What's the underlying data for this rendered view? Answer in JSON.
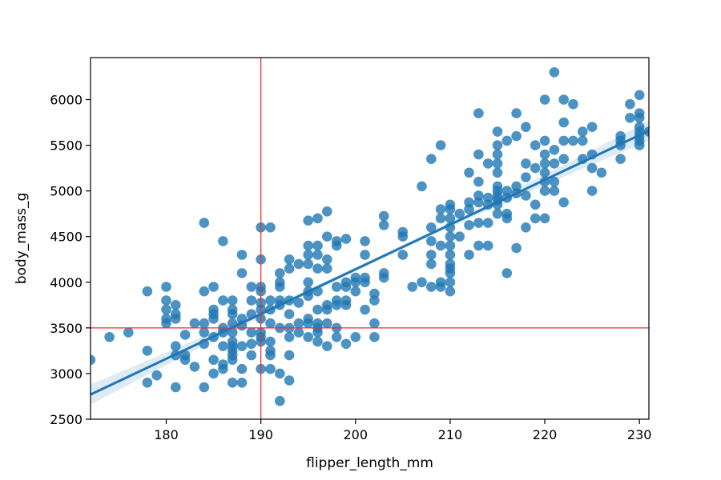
{
  "chart_data": {
    "type": "scatter",
    "title": "",
    "xlabel": "flipper_length_mm",
    "ylabel": "body_mass_g",
    "xlim": [
      172,
      231
    ],
    "ylim": [
      2500,
      6460
    ],
    "x_ticks": [
      180,
      190,
      200,
      210,
      220,
      230
    ],
    "y_ticks": [
      2500,
      3000,
      3500,
      4000,
      4500,
      5000,
      5500,
      6000
    ],
    "grid": false,
    "legend": "none",
    "colors": {
      "points": "#1f77b4",
      "regression": "#1f77b4",
      "ci_band": "#1f77b4",
      "reference_lines": "#e8302a"
    },
    "regression": {
      "x": [
        172,
        231
      ],
      "y": [
        2770,
        5660
      ]
    },
    "reference_lines": {
      "vertical_x": 190,
      "horizontal_y": 3500
    },
    "points": [
      [
        172,
        3150
      ],
      [
        174,
        3400
      ],
      [
        176,
        3450
      ],
      [
        178,
        3900
      ],
      [
        178,
        3250
      ],
      [
        178,
        2900
      ],
      [
        179,
        2980
      ],
      [
        180,
        3950
      ],
      [
        180,
        3800
      ],
      [
        180,
        3700
      ],
      [
        180,
        3600
      ],
      [
        180,
        3550
      ],
      [
        181,
        3750
      ],
      [
        181,
        3650
      ],
      [
        181,
        3600
      ],
      [
        181,
        3300
      ],
      [
        181,
        3200
      ],
      [
        181,
        2850
      ],
      [
        182,
        3425
      ],
      [
        182,
        3200
      ],
      [
        182,
        3150
      ],
      [
        183,
        3550
      ],
      [
        183,
        3075
      ],
      [
        184,
        4650
      ],
      [
        184,
        3900
      ],
      [
        184,
        3550
      ],
      [
        184,
        3450
      ],
      [
        184,
        3325
      ],
      [
        184,
        2850
      ],
      [
        185,
        3950
      ],
      [
        185,
        3700
      ],
      [
        185,
        3650
      ],
      [
        185,
        3600
      ],
      [
        185,
        3400
      ],
      [
        185,
        3150
      ],
      [
        185,
        3000
      ],
      [
        186,
        4450
      ],
      [
        186,
        3800
      ],
      [
        186,
        3500
      ],
      [
        186,
        3450
      ],
      [
        186,
        3300
      ],
      [
        186,
        3100
      ],
      [
        186,
        3050
      ],
      [
        187,
        3800
      ],
      [
        187,
        3700
      ],
      [
        187,
        3650
      ],
      [
        187,
        3550
      ],
      [
        187,
        3450
      ],
      [
        187,
        3350
      ],
      [
        187,
        3300
      ],
      [
        187,
        3250
      ],
      [
        187,
        3200
      ],
      [
        187,
        3150
      ],
      [
        187,
        2900
      ],
      [
        188,
        4300
      ],
      [
        188,
        4100
      ],
      [
        188,
        3600
      ],
      [
        188,
        3525
      ],
      [
        188,
        3300
      ],
      [
        188,
        3050
      ],
      [
        188,
        2900
      ],
      [
        189,
        3950
      ],
      [
        189,
        3800
      ],
      [
        189,
        3650
      ],
      [
        189,
        3450
      ],
      [
        189,
        3325
      ],
      [
        189,
        3200
      ],
      [
        190,
        4600
      ],
      [
        190,
        4250
      ],
      [
        190,
        3950
      ],
      [
        190,
        3900
      ],
      [
        190,
        3775
      ],
      [
        190,
        3700
      ],
      [
        190,
        3600
      ],
      [
        190,
        3450
      ],
      [
        190,
        3400
      ],
      [
        190,
        3350
      ],
      [
        190,
        3050
      ],
      [
        191,
        4600
      ],
      [
        191,
        3800
      ],
      [
        191,
        3700
      ],
      [
        191,
        3550
      ],
      [
        191,
        3350
      ],
      [
        191,
        3250
      ],
      [
        191,
        3200
      ],
      [
        191,
        3050
      ],
      [
        192,
        4100
      ],
      [
        192,
        4000
      ],
      [
        192,
        3950
      ],
      [
        192,
        3800
      ],
      [
        192,
        3750
      ],
      [
        192,
        3500
      ],
      [
        192,
        3000
      ],
      [
        192,
        2700
      ],
      [
        193,
        4250
      ],
      [
        193,
        4150
      ],
      [
        193,
        3800
      ],
      [
        193,
        3650
      ],
      [
        193,
        3500
      ],
      [
        193,
        3400
      ],
      [
        193,
        3200
      ],
      [
        193,
        2925
      ],
      [
        194,
        4200
      ],
      [
        194,
        3775
      ],
      [
        194,
        3550
      ],
      [
        194,
        3450
      ],
      [
        195,
        4675
      ],
      [
        195,
        4400
      ],
      [
        195,
        4300
      ],
      [
        195,
        4200
      ],
      [
        195,
        4000
      ],
      [
        195,
        3900
      ],
      [
        195,
        3850
      ],
      [
        195,
        3600
      ],
      [
        195,
        3550
      ],
      [
        195,
        3400
      ],
      [
        196,
        4700
      ],
      [
        196,
        4400
      ],
      [
        196,
        4300
      ],
      [
        196,
        4150
      ],
      [
        196,
        3900
      ],
      [
        196,
        3700
      ],
      [
        196,
        3550
      ],
      [
        196,
        3500
      ],
      [
        196,
        3450
      ],
      [
        196,
        3350
      ],
      [
        197,
        4775
      ],
      [
        197,
        4500
      ],
      [
        197,
        4250
      ],
      [
        197,
        4150
      ],
      [
        197,
        3750
      ],
      [
        197,
        3700
      ],
      [
        197,
        3550
      ],
      [
        197,
        3300
      ],
      [
        198,
        4450
      ],
      [
        198,
        4400
      ],
      [
        198,
        3950
      ],
      [
        198,
        3800
      ],
      [
        198,
        3750
      ],
      [
        198,
        3500
      ],
      [
        198,
        3400
      ],
      [
        199,
        4475
      ],
      [
        199,
        4000
      ],
      [
        199,
        3950
      ],
      [
        199,
        3800
      ],
      [
        199,
        3750
      ],
      [
        199,
        3325
      ],
      [
        200,
        4050
      ],
      [
        200,
        4000
      ],
      [
        200,
        3900
      ],
      [
        200,
        3400
      ],
      [
        201,
        4450
      ],
      [
        201,
        4300
      ],
      [
        201,
        4050
      ],
      [
        201,
        4000
      ],
      [
        201,
        3700
      ],
      [
        202,
        3875
      ],
      [
        202,
        3800
      ],
      [
        202,
        3550
      ],
      [
        202,
        3400
      ],
      [
        203,
        4725
      ],
      [
        203,
        4625
      ],
      [
        203,
        4100
      ],
      [
        203,
        4050
      ],
      [
        205,
        4550
      ],
      [
        205,
        4500
      ],
      [
        205,
        4300
      ],
      [
        206,
        3950
      ],
      [
        207,
        5050
      ],
      [
        207,
        4000
      ],
      [
        208,
        5350
      ],
      [
        208,
        4600
      ],
      [
        208,
        4450
      ],
      [
        208,
        4300
      ],
      [
        208,
        4200
      ],
      [
        208,
        3950
      ],
      [
        209,
        5500
      ],
      [
        209,
        4800
      ],
      [
        209,
        4700
      ],
      [
        209,
        4400
      ],
      [
        209,
        4000
      ],
      [
        209,
        3950
      ],
      [
        210,
        4850
      ],
      [
        210,
        4800
      ],
      [
        210,
        4700
      ],
      [
        210,
        4600
      ],
      [
        210,
        4500
      ],
      [
        210,
        4400
      ],
      [
        210,
        4300
      ],
      [
        210,
        4200
      ],
      [
        210,
        4150
      ],
      [
        210,
        4100
      ],
      [
        210,
        4000
      ],
      [
        210,
        3900
      ],
      [
        211,
        4750
      ],
      [
        211,
        4500
      ],
      [
        212,
        5200
      ],
      [
        212,
        4875
      ],
      [
        212,
        4800
      ],
      [
        212,
        4625
      ],
      [
        212,
        4300
      ],
      [
        213,
        5850
      ],
      [
        213,
        5400
      ],
      [
        213,
        5100
      ],
      [
        213,
        4950
      ],
      [
        213,
        4875
      ],
      [
        213,
        4650
      ],
      [
        213,
        4400
      ],
      [
        214,
        5300
      ],
      [
        214,
        4925
      ],
      [
        214,
        4850
      ],
      [
        214,
        4650
      ],
      [
        214,
        4400
      ],
      [
        215,
        5650
      ],
      [
        215,
        5500
      ],
      [
        215,
        5400
      ],
      [
        215,
        5300
      ],
      [
        215,
        5200
      ],
      [
        215,
        5050
      ],
      [
        215,
        5000
      ],
      [
        215,
        4950
      ],
      [
        215,
        4900
      ],
      [
        215,
        4850
      ],
      [
        215,
        4750
      ],
      [
        216,
        5550
      ],
      [
        216,
        5000
      ],
      [
        216,
        4925
      ],
      [
        216,
        4750
      ],
      [
        216,
        4700
      ],
      [
        216,
        4100
      ],
      [
        217,
        5850
      ],
      [
        217,
        5600
      ],
      [
        217,
        5050
      ],
      [
        217,
        4975
      ],
      [
        217,
        4375
      ],
      [
        218,
        5700
      ],
      [
        218,
        5300
      ],
      [
        218,
        5150
      ],
      [
        218,
        4950
      ],
      [
        218,
        4600
      ],
      [
        219,
        5500
      ],
      [
        219,
        5250
      ],
      [
        219,
        4850
      ],
      [
        219,
        4700
      ],
      [
        220,
        6000
      ],
      [
        220,
        5550
      ],
      [
        220,
        5400
      ],
      [
        220,
        5300
      ],
      [
        220,
        5200
      ],
      [
        220,
        5100
      ],
      [
        220,
        5000
      ],
      [
        220,
        4700
      ],
      [
        221,
        6300
      ],
      [
        221,
        5450
      ],
      [
        221,
        5300
      ],
      [
        221,
        5100
      ],
      [
        221,
        5000
      ],
      [
        222,
        6000
      ],
      [
        222,
        5750
      ],
      [
        222,
        5550
      ],
      [
        222,
        5350
      ],
      [
        222,
        4875
      ],
      [
        223,
        5950
      ],
      [
        223,
        5550
      ],
      [
        224,
        5650
      ],
      [
        224,
        5350
      ],
      [
        224,
        5550
      ],
      [
        225,
        5700
      ],
      [
        225,
        5400
      ],
      [
        225,
        5250
      ],
      [
        225,
        5000
      ],
      [
        226,
        5200
      ],
      [
        228,
        5600
      ],
      [
        228,
        5550
      ],
      [
        228,
        5500
      ],
      [
        228,
        5350
      ],
      [
        229,
        5950
      ],
      [
        229,
        5800
      ],
      [
        230,
        6050
      ],
      [
        230,
        5850
      ],
      [
        230,
        5800
      ],
      [
        230,
        5700
      ],
      [
        230,
        5650
      ],
      [
        230,
        5600
      ],
      [
        230,
        5550
      ],
      [
        230,
        5500
      ],
      [
        231,
        5650
      ]
    ]
  }
}
